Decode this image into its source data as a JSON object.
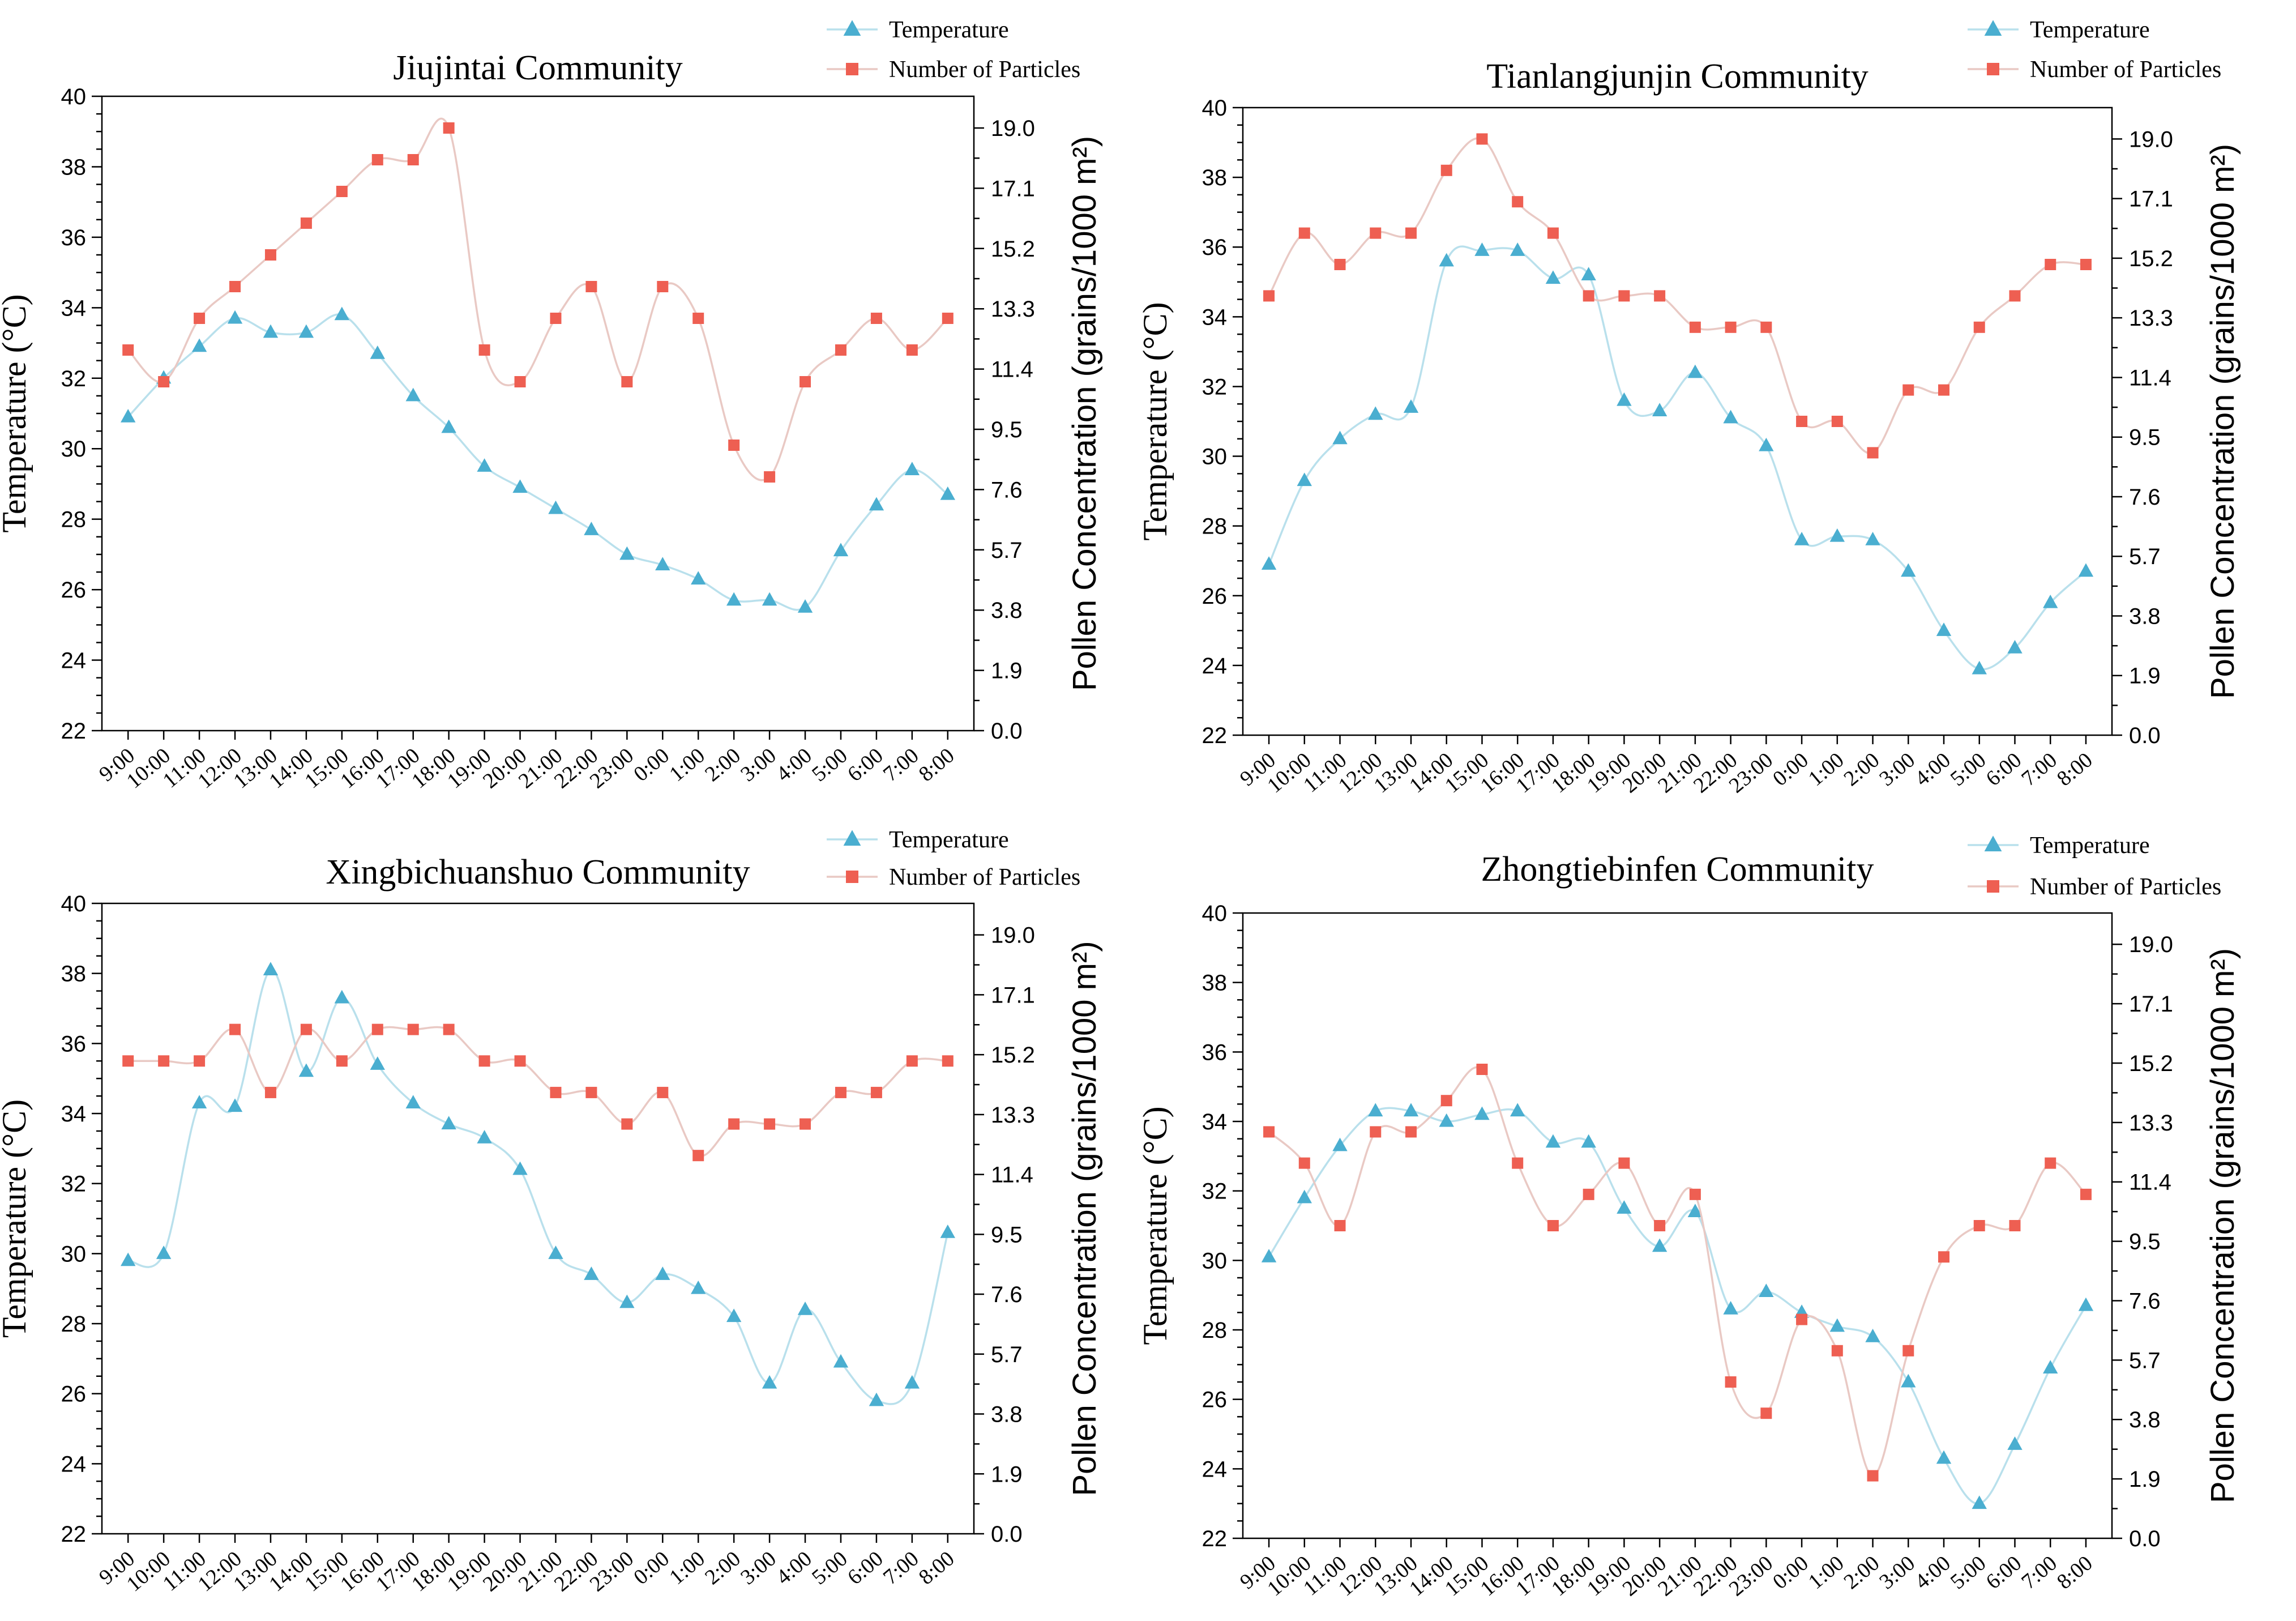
{
  "colors": {
    "temperature": "#4aaed0",
    "temperature_line": "#b9e0ec",
    "particles": "#ee5f52",
    "particles_line": "#e9c9c4",
    "axis": "#000000"
  },
  "icons": {
    "temperature_marker": "triangle-marker",
    "particles_marker": "square-marker"
  },
  "chart_data": [
    {
      "type": "line",
      "title": "Jiujintai Community",
      "xlabel": "",
      "ylabel": "Temperature (°C)",
      "y2label": "Pollen Concentration (grains/1000 m²)",
      "ylim": [
        22,
        40
      ],
      "yticks": [
        "22",
        "24",
        "26",
        "28",
        "30",
        "32",
        "34",
        "36",
        "38",
        "40"
      ],
      "y2lim": [
        0,
        20
      ],
      "y2ticks": [
        "0.0",
        "1.9",
        "3.8",
        "5.7",
        "7.6",
        "9.5",
        "11.4",
        "13.3",
        "15.2",
        "17.1",
        "19.0"
      ],
      "legend": "top-right",
      "categories": [
        "9:00",
        "10:00",
        "11:00",
        "12:00",
        "13:00",
        "14:00",
        "15:00",
        "16:00",
        "17:00",
        "18:00",
        "19:00",
        "20:00",
        "21:00",
        "22:00",
        "23:00",
        "0:00",
        "1:00",
        "2:00",
        "3:00",
        "4:00",
        "5:00",
        "6:00",
        "7:00",
        "8:00"
      ],
      "series": [
        {
          "name": "Temperature",
          "axis": "left",
          "values": [
            30.9,
            32.0,
            32.9,
            33.7,
            33.3,
            33.3,
            33.8,
            32.7,
            31.5,
            30.6,
            29.5,
            28.9,
            28.3,
            27.7,
            27.0,
            26.7,
            26.3,
            25.7,
            25.7,
            25.5,
            27.1,
            28.4,
            29.4,
            28.7
          ]
        },
        {
          "name": "Number of Particles",
          "axis": "right",
          "values": [
            12.0,
            11.0,
            13.0,
            14.0,
            15.0,
            16.0,
            17.0,
            18.0,
            18.0,
            19.0,
            12.0,
            11.0,
            13.0,
            14.0,
            11.0,
            14.0,
            13.0,
            9.0,
            8.0,
            11.0,
            12.0,
            13.0,
            12.0,
            13.0
          ]
        }
      ]
    },
    {
      "type": "line",
      "title": "Tianlangjunjin Community",
      "xlabel": "",
      "ylabel": "Temperature (°C)",
      "y2label": "Pollen Concentration (grains/1000 m²)",
      "ylim": [
        22,
        40
      ],
      "yticks": [
        "22",
        "24",
        "26",
        "28",
        "30",
        "32",
        "34",
        "36",
        "38",
        "40"
      ],
      "y2lim": [
        0,
        20
      ],
      "y2ticks": [
        "0.0",
        "1.9",
        "3.8",
        "5.7",
        "7.6",
        "9.5",
        "11.4",
        "13.3",
        "15.2",
        "17.1",
        "19.0"
      ],
      "legend": "top-right",
      "categories": [
        "9:00",
        "10:00",
        "11:00",
        "12:00",
        "13:00",
        "14:00",
        "15:00",
        "16:00",
        "17:00",
        "18:00",
        "19:00",
        "20:00",
        "21:00",
        "22:00",
        "23:00",
        "0:00",
        "1:00",
        "2:00",
        "3:00",
        "4:00",
        "5:00",
        "6:00",
        "7:00",
        "8:00"
      ],
      "series": [
        {
          "name": "Temperature",
          "axis": "left",
          "values": [
            26.9,
            29.3,
            30.5,
            31.2,
            31.4,
            35.6,
            35.9,
            35.9,
            35.1,
            35.2,
            31.6,
            31.3,
            32.4,
            31.1,
            30.3,
            27.6,
            27.7,
            27.6,
            26.7,
            25.0,
            23.9,
            24.5,
            25.8,
            26.7
          ]
        },
        {
          "name": "Number of Particles",
          "axis": "right",
          "values": [
            14.0,
            16.0,
            15.0,
            16.0,
            16.0,
            18.0,
            19.0,
            17.0,
            16.0,
            14.0,
            14.0,
            14.0,
            13.0,
            13.0,
            13.0,
            10.0,
            10.0,
            9.0,
            11.0,
            11.0,
            13.0,
            14.0,
            15.0,
            15.0
          ]
        }
      ]
    },
    {
      "type": "line",
      "title": "Xingbichuanshuo Community",
      "xlabel": "",
      "ylabel": "Temperature (°C)",
      "y2label": "Pollen Concentration (grains/1000 m²)",
      "ylim": [
        22,
        40
      ],
      "yticks": [
        "22",
        "24",
        "26",
        "28",
        "30",
        "32",
        "34",
        "36",
        "38",
        "40"
      ],
      "y2lim": [
        0,
        20
      ],
      "y2ticks": [
        "0.0",
        "1.9",
        "3.8",
        "5.7",
        "7.6",
        "9.5",
        "11.4",
        "13.3",
        "15.2",
        "17.1",
        "19.0"
      ],
      "legend": "top-right",
      "categories": [
        "9:00",
        "10:00",
        "11:00",
        "12:00",
        "13:00",
        "14:00",
        "15:00",
        "16:00",
        "17:00",
        "18:00",
        "19:00",
        "20:00",
        "21:00",
        "22:00",
        "23:00",
        "0:00",
        "1:00",
        "2:00",
        "3:00",
        "4:00",
        "5:00",
        "6:00",
        "7:00",
        "8:00"
      ],
      "series": [
        {
          "name": "Temperature",
          "axis": "left",
          "values": [
            29.8,
            30.0,
            34.3,
            34.2,
            38.1,
            35.2,
            37.3,
            35.4,
            34.3,
            33.7,
            33.3,
            32.4,
            30.0,
            29.4,
            28.6,
            29.4,
            29.0,
            28.2,
            26.3,
            28.4,
            26.9,
            25.8,
            26.3,
            30.6
          ]
        },
        {
          "name": "Number of Particles",
          "axis": "right",
          "values": [
            15.0,
            15.0,
            15.0,
            16.0,
            14.0,
            16.0,
            15.0,
            16.0,
            16.0,
            16.0,
            15.0,
            15.0,
            14.0,
            14.0,
            13.0,
            14.0,
            12.0,
            13.0,
            13.0,
            13.0,
            14.0,
            14.0,
            15.0,
            15.0
          ]
        }
      ]
    },
    {
      "type": "line",
      "title": "Zhongtiebinfen Community",
      "xlabel": "",
      "ylabel": "Temperature (°C)",
      "y2label": "Pollen Concentration (grains/1000 m²)",
      "ylim": [
        22,
        40
      ],
      "yticks": [
        "22",
        "24",
        "26",
        "28",
        "30",
        "32",
        "34",
        "36",
        "38",
        "40"
      ],
      "y2lim": [
        0,
        20
      ],
      "y2ticks": [
        "0.0",
        "1.9",
        "3.8",
        "5.7",
        "7.6",
        "9.5",
        "11.4",
        "13.3",
        "15.2",
        "17.1",
        "19.0"
      ],
      "legend": "top-right",
      "categories": [
        "9:00",
        "10:00",
        "11:00",
        "12:00",
        "13:00",
        "14:00",
        "15:00",
        "16:00",
        "17:00",
        "18:00",
        "19:00",
        "20:00",
        "21:00",
        "22:00",
        "23:00",
        "0:00",
        "1:00",
        "2:00",
        "3:00",
        "4:00",
        "5:00",
        "6:00",
        "7:00",
        "8:00"
      ],
      "series": [
        {
          "name": "Temperature",
          "axis": "left",
          "values": [
            30.1,
            31.8,
            33.3,
            34.3,
            34.3,
            34.0,
            34.2,
            34.3,
            33.4,
            33.4,
            31.5,
            30.4,
            31.4,
            28.6,
            29.1,
            28.5,
            28.1,
            27.8,
            26.5,
            24.3,
            23.0,
            24.7,
            26.9,
            28.7
          ]
        },
        {
          "name": "Number of Particles",
          "axis": "right",
          "values": [
            13.0,
            12.0,
            10.0,
            13.0,
            13.0,
            14.0,
            15.0,
            12.0,
            10.0,
            11.0,
            12.0,
            10.0,
            11.0,
            5.0,
            4.0,
            7.0,
            6.0,
            2.0,
            6.0,
            9.0,
            10.0,
            10.0,
            12.0,
            11.0
          ]
        }
      ]
    }
  ]
}
